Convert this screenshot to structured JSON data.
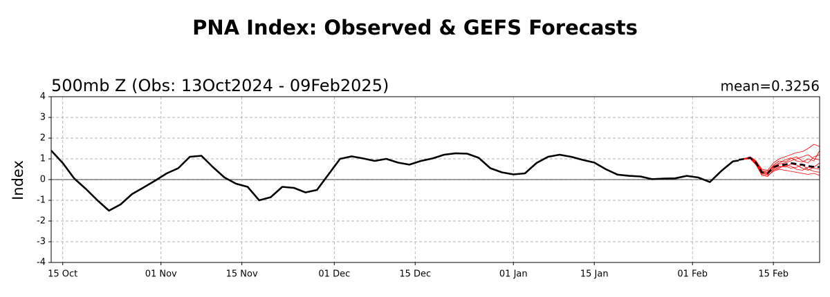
{
  "chart_data": {
    "type": "line",
    "title": "PNA Index: Observed & GEFS Forecasts",
    "title_color": "#0000ff",
    "subtitle": "500mb Z (Obs: 13Oct2024 - 09Feb2025)",
    "annotation": "mean=0.3256",
    "ylabel": "Index",
    "xlim": [
      "2024-10-13",
      "2025-02-23"
    ],
    "ylim": [
      -4,
      4
    ],
    "yticks": [
      -4,
      -3,
      -2,
      -1,
      0,
      1,
      2,
      3,
      4
    ],
    "xticks": [
      {
        "value": "2024-10-15",
        "label": "15 Oct"
      },
      {
        "value": "2024-11-01",
        "label": "01 Nov"
      },
      {
        "value": "2024-11-15",
        "label": "15 Nov"
      },
      {
        "value": "2024-12-01",
        "label": "01 Dec"
      },
      {
        "value": "2024-12-15",
        "label": "15 Dec"
      },
      {
        "value": "2025-01-01",
        "label": "01 Jan"
      },
      {
        "value": "2025-01-15",
        "label": "15 Jan"
      },
      {
        "value": "2025-02-01",
        "label": "01 Feb"
      },
      {
        "value": "2025-02-15",
        "label": "15 Feb"
      }
    ],
    "grid": true,
    "zero_line": true,
    "series": [
      {
        "color": "#ff0000",
        "x": [
          "2025-02-09",
          "2025-02-10",
          "2025-02-11",
          "2025-02-12",
          "2025-02-13",
          "2025-02-14",
          "2025-02-15",
          "2025-02-16",
          "2025-02-17",
          "2025-02-18",
          "2025-02-19",
          "2025-02-20",
          "2025-02-21",
          "2025-02-22",
          "2025-02-23"
        ],
        "values": [
          0.95,
          1.02,
          1.1,
          0.9,
          0.5,
          0.45,
          0.8,
          1.0,
          1.1,
          1.2,
          1.3,
          1.35,
          1.5,
          1.7,
          1.6
        ]
      },
      {
        "color": "#ff0000",
        "x": [
          "2025-02-09",
          "2025-02-10",
          "2025-02-11",
          "2025-02-12",
          "2025-02-13",
          "2025-02-14",
          "2025-02-15",
          "2025-02-16",
          "2025-02-17",
          "2025-02-18",
          "2025-02-19",
          "2025-02-20",
          "2025-02-21",
          "2025-02-22",
          "2025-02-23"
        ],
        "values": [
          0.95,
          0.98,
          1.0,
          0.7,
          0.25,
          0.2,
          0.4,
          0.5,
          0.45,
          0.4,
          0.35,
          0.3,
          0.25,
          0.3,
          0.2
        ]
      },
      {
        "color": "#ff0000",
        "x": [
          "2025-02-09",
          "2025-02-10",
          "2025-02-11",
          "2025-02-12",
          "2025-02-13",
          "2025-02-14",
          "2025-02-15",
          "2025-02-16",
          "2025-02-17",
          "2025-02-18",
          "2025-02-19",
          "2025-02-20",
          "2025-02-21",
          "2025-02-22",
          "2025-02-23"
        ],
        "values": [
          0.95,
          1.0,
          1.08,
          0.85,
          0.4,
          0.35,
          0.7,
          0.9,
          0.85,
          1.0,
          1.1,
          0.9,
          0.8,
          1.1,
          1.2
        ]
      },
      {
        "color": "#ff0000",
        "x": [
          "2025-02-09",
          "2025-02-10",
          "2025-02-11",
          "2025-02-12",
          "2025-02-13",
          "2025-02-14",
          "2025-02-15",
          "2025-02-16",
          "2025-02-17",
          "2025-02-18",
          "2025-02-19",
          "2025-02-20",
          "2025-02-21",
          "2025-02-22",
          "2025-02-23"
        ],
        "values": [
          0.95,
          0.99,
          1.02,
          0.75,
          0.3,
          0.25,
          0.5,
          0.6,
          0.65,
          0.55,
          0.6,
          0.7,
          0.5,
          0.4,
          0.35
        ]
      },
      {
        "color": "#ff0000",
        "x": [
          "2025-02-09",
          "2025-02-10",
          "2025-02-11",
          "2025-02-12",
          "2025-02-13",
          "2025-02-14",
          "2025-02-15",
          "2025-02-16",
          "2025-02-17",
          "2025-02-18",
          "2025-02-19",
          "2025-02-20",
          "2025-02-21",
          "2025-02-22",
          "2025-02-23"
        ],
        "values": [
          0.95,
          1.01,
          1.06,
          0.82,
          0.38,
          0.32,
          0.65,
          0.8,
          0.95,
          1.05,
          0.9,
          0.85,
          1.0,
          0.9,
          1.4
        ]
      },
      {
        "color": "#ff0000",
        "x": [
          "2025-02-09",
          "2025-02-10",
          "2025-02-11",
          "2025-02-12",
          "2025-02-13",
          "2025-02-14",
          "2025-02-15",
          "2025-02-16",
          "2025-02-17",
          "2025-02-18",
          "2025-02-19",
          "2025-02-20",
          "2025-02-21",
          "2025-02-22",
          "2025-02-23"
        ],
        "values": [
          0.95,
          1.0,
          1.04,
          0.78,
          0.32,
          0.28,
          0.55,
          0.65,
          0.6,
          0.75,
          0.7,
          0.55,
          0.45,
          0.6,
          0.8
        ]
      },
      {
        "color": "#ff0000",
        "x": [
          "2025-02-09",
          "2025-02-10",
          "2025-02-11",
          "2025-02-12",
          "2025-02-13",
          "2025-02-14",
          "2025-02-15",
          "2025-02-16",
          "2025-02-17",
          "2025-02-18",
          "2025-02-19",
          "2025-02-20",
          "2025-02-21",
          "2025-02-22",
          "2025-02-23"
        ],
        "values": [
          0.95,
          1.02,
          1.09,
          0.88,
          0.45,
          0.4,
          0.6,
          0.75,
          0.8,
          0.9,
          1.0,
          1.1,
          1.2,
          1.0,
          0.95
        ]
      },
      {
        "color": "#ff0000",
        "x": [
          "2025-02-09",
          "2025-02-10",
          "2025-02-11",
          "2025-02-12",
          "2025-02-13",
          "2025-02-14",
          "2025-02-15",
          "2025-02-16",
          "2025-02-17",
          "2025-02-18",
          "2025-02-19",
          "2025-02-20",
          "2025-02-21",
          "2025-02-22",
          "2025-02-23"
        ],
        "values": [
          0.95,
          0.99,
          1.0,
          0.72,
          0.2,
          0.15,
          0.45,
          0.55,
          0.7,
          0.65,
          0.5,
          0.45,
          0.6,
          0.55,
          0.5
        ]
      },
      {
        "color": "#000000",
        "x": [
          "2024-10-13",
          "2024-10-15",
          "2024-10-17",
          "2024-10-19",
          "2024-10-21",
          "2024-10-23",
          "2024-10-25",
          "2024-10-27",
          "2024-10-29",
          "2024-10-31",
          "2024-11-02",
          "2024-11-04",
          "2024-11-06",
          "2024-11-08",
          "2024-11-10",
          "2024-11-12",
          "2024-11-14",
          "2024-11-16",
          "2024-11-18",
          "2024-11-20",
          "2024-11-22",
          "2024-11-24",
          "2024-11-26",
          "2024-11-28",
          "2024-11-30",
          "2024-12-02",
          "2024-12-04",
          "2024-12-06",
          "2024-12-08",
          "2024-12-10",
          "2024-12-12",
          "2024-12-14",
          "2024-12-16",
          "2024-12-18",
          "2024-12-20",
          "2024-12-22",
          "2024-12-24",
          "2024-12-26",
          "2024-12-28",
          "2024-12-30",
          "2025-01-01",
          "2025-01-03",
          "2025-01-05",
          "2025-01-07",
          "2025-01-09",
          "2025-01-11",
          "2025-01-13",
          "2025-01-15",
          "2025-01-17",
          "2025-01-19",
          "2025-01-21",
          "2025-01-23",
          "2025-01-25",
          "2025-01-27",
          "2025-01-29",
          "2025-01-31",
          "2025-02-02",
          "2025-02-04",
          "2025-02-06",
          "2025-02-08",
          "2025-02-09"
        ],
        "values": [
          1.4,
          0.8,
          0.05,
          -0.45,
          -1.0,
          -1.5,
          -1.2,
          -0.7,
          -0.38,
          -0.05,
          0.3,
          0.55,
          1.1,
          1.15,
          0.6,
          0.1,
          -0.2,
          -0.35,
          -1.0,
          -0.85,
          -0.35,
          -0.4,
          -0.62,
          -0.5,
          0.25,
          1.0,
          1.12,
          1.02,
          0.9,
          1.0,
          0.82,
          0.72,
          0.9,
          1.02,
          1.2,
          1.27,
          1.25,
          1.05,
          0.55,
          0.35,
          0.25,
          0.3,
          0.8,
          1.1,
          1.2,
          1.1,
          0.95,
          0.82,
          0.5,
          0.24,
          0.18,
          0.15,
          0.02,
          0.05,
          0.06,
          0.18,
          0.1,
          -0.12,
          0.42,
          0.88,
          0.92
        ]
      },
      {
        "color": "#000000",
        "dashed": true,
        "x": [
          "2025-02-09",
          "2025-02-10",
          "2025-02-11",
          "2025-02-12",
          "2025-02-13",
          "2025-02-14",
          "2025-02-15",
          "2025-02-16",
          "2025-02-17",
          "2025-02-18",
          "2025-02-19",
          "2025-02-20",
          "2025-02-21",
          "2025-02-22",
          "2025-02-23"
        ],
        "values": [
          0.95,
          1.0,
          1.05,
          0.8,
          0.35,
          0.3,
          0.6,
          0.7,
          0.72,
          0.8,
          0.75,
          0.72,
          0.65,
          0.62,
          0.6
        ]
      }
    ]
  }
}
